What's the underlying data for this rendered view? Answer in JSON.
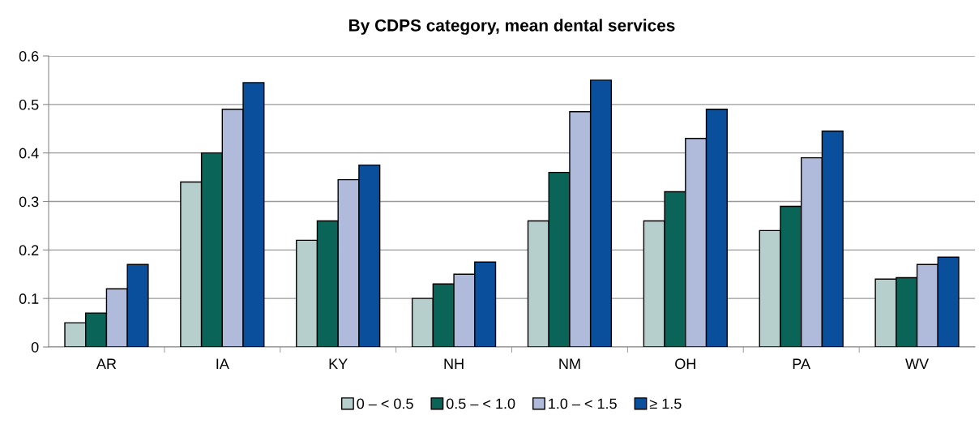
{
  "chart_data": {
    "type": "bar",
    "title": "By CDPS category, mean dental services",
    "categories": [
      "AR",
      "IA",
      "KY",
      "NH",
      "NM",
      "OH",
      "PA",
      "WV"
    ],
    "series": [
      {
        "name": "0 – < 0.5",
        "color": "#b7cfcc",
        "values": [
          0.05,
          0.34,
          0.22,
          0.1,
          0.26,
          0.26,
          0.24,
          0.14
        ]
      },
      {
        "name": "0.5 – < 1.0",
        "color": "#0b6458",
        "values": [
          0.07,
          0.4,
          0.26,
          0.13,
          0.36,
          0.32,
          0.29,
          0.143
        ]
      },
      {
        "name": "1.0 – < 1.5",
        "color": "#b0bbdc",
        "values": [
          0.12,
          0.49,
          0.345,
          0.15,
          0.485,
          0.43,
          0.39,
          0.17
        ]
      },
      {
        "name": "≥ 1.5",
        "color": "#0a4f9c",
        "values": [
          0.17,
          0.545,
          0.375,
          0.175,
          0.55,
          0.49,
          0.445,
          0.185
        ]
      }
    ],
    "ylim": [
      0,
      0.6
    ],
    "yticks": [
      0,
      0.1,
      0.2,
      0.3,
      0.4,
      0.5,
      0.6
    ],
    "grid": "y",
    "legend": "bottom"
  }
}
